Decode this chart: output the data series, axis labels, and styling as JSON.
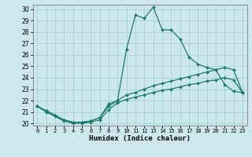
{
  "xlabel": "Humidex (Indice chaleur)",
  "bg_color": "#cce8ec",
  "grid_color": "#aad4d8",
  "line_color": "#1a7a6e",
  "xlim": [
    -0.5,
    23.5
  ],
  "ylim": [
    19.8,
    30.4
  ],
  "xticks": [
    0,
    1,
    2,
    3,
    4,
    5,
    6,
    7,
    8,
    9,
    10,
    11,
    12,
    13,
    14,
    15,
    16,
    17,
    18,
    19,
    20,
    21,
    22,
    23
  ],
  "yticks": [
    20,
    21,
    22,
    23,
    24,
    25,
    26,
    27,
    28,
    29,
    30
  ],
  "series": [
    {
      "x": [
        0,
        1,
        2,
        3,
        4,
        5,
        6,
        7,
        8,
        9,
        10,
        11,
        12,
        13,
        14,
        15,
        16,
        17,
        18,
        19,
        20,
        21,
        22,
        23
      ],
      "y": [
        21.5,
        21.1,
        20.7,
        20.3,
        20.1,
        20.1,
        20.2,
        20.5,
        21.7,
        22.0,
        26.5,
        29.5,
        29.2,
        30.2,
        28.2,
        28.2,
        27.4,
        25.8,
        25.2,
        24.9,
        24.7,
        23.4,
        22.8,
        22.7
      ]
    },
    {
      "x": [
        0,
        1,
        2,
        3,
        4,
        5,
        6,
        7,
        8,
        9,
        10,
        11,
        12,
        13,
        14,
        15,
        16,
        17,
        18,
        19,
        20,
        21,
        22,
        23
      ],
      "y": [
        21.5,
        21.1,
        20.7,
        20.3,
        20.1,
        20.1,
        20.2,
        20.5,
        21.5,
        22.0,
        22.5,
        22.7,
        23.0,
        23.3,
        23.5,
        23.7,
        23.9,
        24.1,
        24.3,
        24.5,
        24.7,
        24.9,
        24.7,
        22.7
      ]
    },
    {
      "x": [
        0,
        1,
        2,
        3,
        4,
        5,
        6,
        7,
        8,
        9,
        10,
        11,
        12,
        13,
        14,
        15,
        16,
        17,
        18,
        19,
        20,
        21,
        22,
        23
      ],
      "y": [
        21.5,
        21.0,
        20.6,
        20.2,
        20.0,
        20.0,
        20.1,
        20.3,
        21.2,
        21.8,
        22.1,
        22.3,
        22.5,
        22.7,
        22.9,
        23.0,
        23.2,
        23.4,
        23.5,
        23.7,
        23.8,
        24.0,
        23.8,
        22.7
      ]
    }
  ]
}
